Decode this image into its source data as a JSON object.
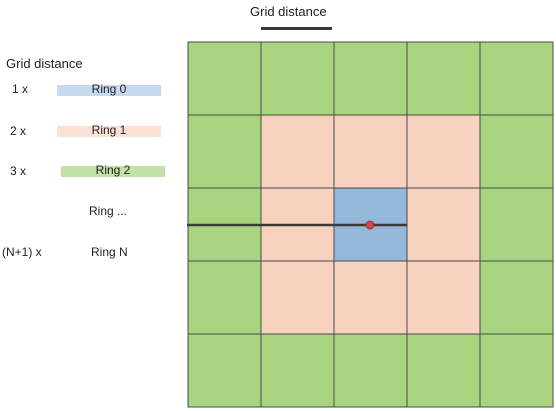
{
  "header": {
    "title": "Grid distance"
  },
  "legend": {
    "title": "Grid distance",
    "rows": [
      {
        "multiplier": "1 x",
        "label": "Ring 0",
        "color": "#c6d9f0"
      },
      {
        "multiplier": "2 x",
        "label": "Ring 1",
        "color": "#fbe1d5"
      },
      {
        "multiplier": "3 x",
        "label": "Ring 2",
        "color": "#c3e1a6"
      },
      {
        "multiplier": "",
        "label": "Ring ..."
      },
      {
        "multiplier": "(N+1) x",
        "label": "Ring N"
      }
    ]
  },
  "grid": {
    "rows": 5,
    "cols": 5,
    "colors": {
      "ring0": "#93b8d9",
      "ring1": "#f7d3bf",
      "ring2": "#a8d47f",
      "border": "#4a4a4a",
      "point": "#e0453a"
    }
  }
}
